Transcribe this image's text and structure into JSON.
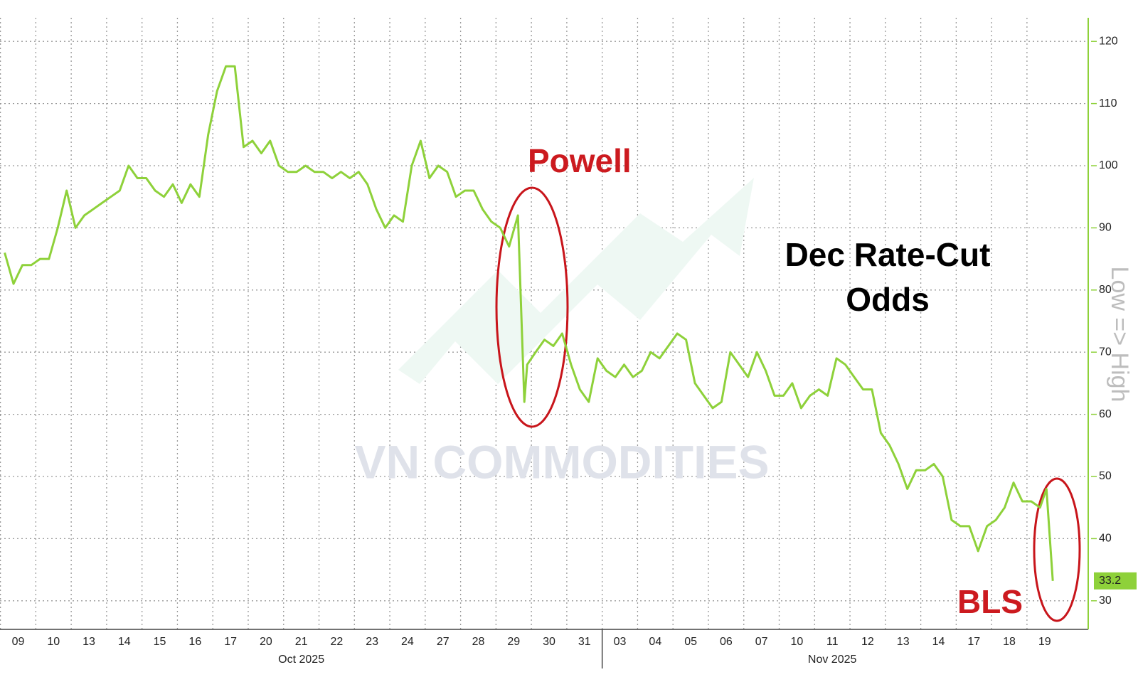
{
  "chart_data": {
    "type": "line",
    "annotations": [
      "Powell",
      "Dec Rate-Cut",
      "Odds",
      "BLS"
    ],
    "y_axis_label": "Low => High",
    "watermark": "VN COMMODITIES",
    "month_labels": [
      "Oct 2025",
      "Nov 2025"
    ],
    "xticks": [
      {
        "value": 0.5,
        "label": "09"
      },
      {
        "value": 1.5,
        "label": "10"
      },
      {
        "value": 2.5,
        "label": "13"
      },
      {
        "value": 3.5,
        "label": "14"
      },
      {
        "value": 4.5,
        "label": "15"
      },
      {
        "value": 5.5,
        "label": "16"
      },
      {
        "value": 6.5,
        "label": "17"
      },
      {
        "value": 7.5,
        "label": "20"
      },
      {
        "value": 8.5,
        "label": "21"
      },
      {
        "value": 9.5,
        "label": "22"
      },
      {
        "value": 10.5,
        "label": "23"
      },
      {
        "value": 11.5,
        "label": "24"
      },
      {
        "value": 12.5,
        "label": "27"
      },
      {
        "value": 13.5,
        "label": "28"
      },
      {
        "value": 14.5,
        "label": "29"
      },
      {
        "value": 15.5,
        "label": "30"
      },
      {
        "value": 16.5,
        "label": "31"
      },
      {
        "value": 17.5,
        "label": "03"
      },
      {
        "value": 18.5,
        "label": "04"
      },
      {
        "value": 19.5,
        "label": "05"
      },
      {
        "value": 20.5,
        "label": "06"
      },
      {
        "value": 21.5,
        "label": "07"
      },
      {
        "value": 22.5,
        "label": "10"
      },
      {
        "value": 23.5,
        "label": "11"
      },
      {
        "value": 24.5,
        "label": "12"
      },
      {
        "value": 25.5,
        "label": "13"
      },
      {
        "value": 26.5,
        "label": "14"
      },
      {
        "value": 27.5,
        "label": "17"
      },
      {
        "value": 28.5,
        "label": "18"
      },
      {
        "value": 29.5,
        "label": "19"
      }
    ],
    "xlim": [
      0,
      30.73
    ],
    "ylim": [
      25.4,
      123.8
    ],
    "yticks": [
      30,
      40,
      50,
      60,
      70,
      80,
      90,
      100,
      110,
      120
    ],
    "grid": true,
    "x": [
      0.12,
      0.37,
      0.62,
      0.87,
      1.12,
      1.37,
      1.62,
      1.87,
      2.12,
      2.37,
      2.62,
      2.87,
      3.12,
      3.37,
      3.62,
      3.87,
      4.12,
      4.37,
      4.62,
      4.87,
      5.12,
      5.37,
      5.62,
      5.87,
      6.12,
      6.37,
      6.62,
      6.87,
      7.12,
      7.37,
      7.62,
      7.87,
      8.12,
      8.37,
      8.62,
      8.87,
      9.12,
      9.37,
      9.62,
      9.87,
      10.12,
      10.37,
      10.62,
      10.87,
      11.12,
      11.37,
      11.62,
      11.87,
      12.12,
      12.37,
      12.62,
      12.87,
      13.12,
      13.37,
      13.62,
      13.87,
      14.12,
      14.37,
      14.62,
      14.8,
      14.88,
      15.12,
      15.37,
      15.62,
      15.87,
      16.12,
      16.37,
      16.62,
      16.87,
      17.12,
      17.37,
      17.62,
      17.87,
      18.12,
      18.37,
      18.62,
      18.87,
      19.12,
      19.37,
      19.62,
      19.87,
      20.12,
      20.37,
      20.62,
      20.87,
      21.12,
      21.37,
      21.62,
      21.87,
      22.12,
      22.37,
      22.62,
      22.87,
      23.12,
      23.37,
      23.62,
      23.87,
      24.12,
      24.37,
      24.62,
      24.87,
      25.12,
      25.37,
      25.62,
      25.87,
      26.12,
      26.37,
      26.62,
      26.87,
      27.12,
      27.37,
      27.62,
      27.87,
      28.12,
      28.37,
      28.62,
      28.87,
      29.12,
      29.37,
      29.55,
      29.73
    ],
    "series": [
      {
        "name": "Dec Rate-Cut Odds",
        "color": "#8ed13a",
        "values": [
          86,
          81,
          84,
          84,
          85,
          85,
          90,
          96,
          90,
          92,
          93,
          94,
          95,
          96,
          100,
          98,
          98,
          96,
          95,
          97,
          94,
          97,
          95,
          105,
          112,
          116,
          116,
          103,
          104,
          102,
          104,
          100,
          99,
          99,
          100,
          99,
          99,
          98,
          99,
          98,
          99,
          97,
          93,
          90,
          92,
          91,
          100,
          104,
          98,
          100,
          99,
          95,
          96,
          96,
          93,
          91,
          90,
          87,
          92,
          62,
          68,
          70,
          72,
          71,
          73,
          68,
          64,
          62,
          69,
          67,
          66,
          68,
          66,
          67,
          70,
          69,
          71,
          73,
          72,
          65,
          63,
          61,
          62,
          70,
          68,
          66,
          70,
          67,
          63,
          63,
          65,
          61,
          63,
          64,
          63,
          69,
          68,
          66,
          64,
          64,
          57,
          55,
          52,
          48,
          51,
          51,
          52,
          50,
          43,
          42,
          42,
          38,
          42,
          43,
          45,
          49,
          46,
          46,
          45,
          48,
          33.2
        ]
      }
    ]
  }
}
